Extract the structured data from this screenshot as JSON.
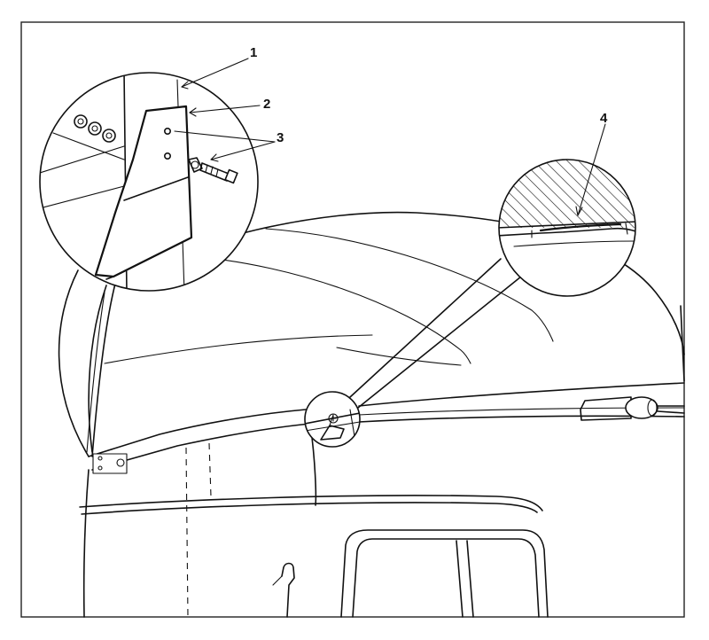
{
  "callouts": {
    "one": "1",
    "two": "2",
    "three": "3",
    "four": "4"
  },
  "colors": {
    "ink": "#111111",
    "background": "#ffffff",
    "frame": "#222222"
  }
}
